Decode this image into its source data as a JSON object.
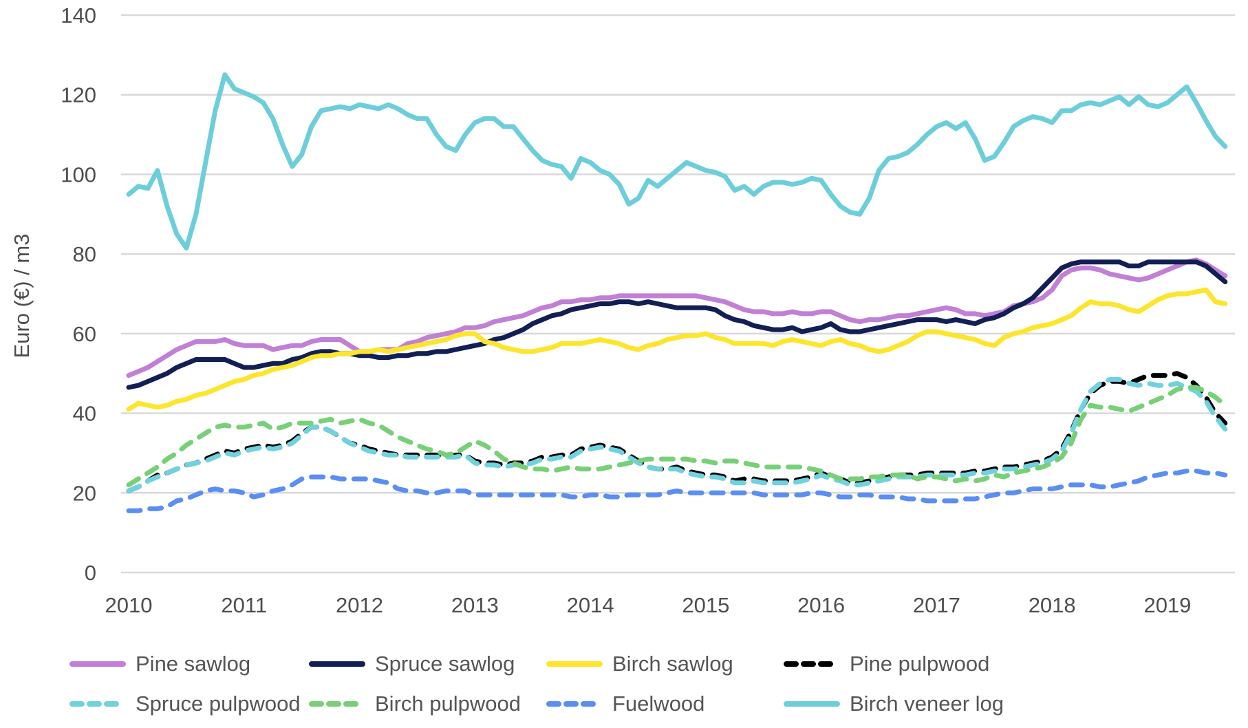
{
  "chart_data": {
    "type": "line",
    "title": "",
    "xlabel": "",
    "ylabel": "Euro (€) / m3",
    "ylim": [
      0,
      140
    ],
    "yticks": [
      0,
      20,
      40,
      60,
      80,
      100,
      120,
      140
    ],
    "x_tick_labels": [
      "2010",
      "2011",
      "2012",
      "2013",
      "2014",
      "2015",
      "2016",
      "2017",
      "2018",
      "2019"
    ],
    "x_resolution": "monthly",
    "points_per_series": 115,
    "grid": true,
    "legend_position": "bottom",
    "gridline_color": "#d9d9d9",
    "text_color": "#4d4d4d",
    "series": [
      {
        "name": "Pine sawlog",
        "color": "#c17fd6",
        "dashed": false,
        "legend_row": 0,
        "legend_col": 0,
        "values": [
          49.5,
          50.5,
          51.5,
          53,
          54.5,
          56,
          57,
          58,
          58,
          58,
          58.5,
          57.5,
          57,
          57,
          57,
          56,
          56.5,
          57,
          57,
          58,
          58.5,
          58.5,
          58.5,
          57,
          55.5,
          55.5,
          56,
          56,
          56,
          57.5,
          58,
          59,
          59.5,
          60,
          60.5,
          61.5,
          61.5,
          62,
          63,
          63.5,
          64,
          64.5,
          65.5,
          66.5,
          67,
          68,
          68,
          68.5,
          68.5,
          69,
          69,
          69.5,
          69.5,
          69.5,
          69.5,
          69.5,
          69.5,
          69.5,
          69.5,
          69.5,
          69,
          68.5,
          68,
          67,
          66,
          65.5,
          65.5,
          65,
          65,
          65.5,
          65,
          65,
          65.5,
          65.5,
          64.5,
          63.5,
          63,
          63.5,
          63.5,
          64,
          64.5,
          64.5,
          65,
          65.5,
          66,
          66.5,
          66,
          65,
          65,
          64.5,
          65,
          65.5,
          67,
          67.5,
          68,
          69,
          71,
          74.5,
          76,
          76.5,
          76.5,
          76,
          75,
          74.5,
          74,
          73.5,
          74,
          75,
          76,
          77,
          78,
          78.5,
          77.5,
          76,
          74.5
        ]
      },
      {
        "name": "Spruce sawlog",
        "color": "#121f55",
        "dashed": false,
        "legend_row": 0,
        "legend_col": 1,
        "values": [
          46.5,
          47,
          48,
          49,
          50,
          51.5,
          52.5,
          53.5,
          53.5,
          53.5,
          53.5,
          52.5,
          51.5,
          51.5,
          52,
          52.5,
          52.5,
          53.5,
          54,
          55,
          55.5,
          55.5,
          55,
          55,
          54.5,
          54.5,
          54,
          54,
          54.5,
          54.5,
          55,
          55,
          55.5,
          55.5,
          56,
          56.5,
          57,
          57.5,
          58.5,
          59,
          60,
          61,
          62.5,
          63.5,
          64.5,
          65,
          66,
          66.5,
          67,
          67.5,
          67.5,
          68,
          68,
          67.5,
          68,
          67.5,
          67,
          66.5,
          66.5,
          66.5,
          66.5,
          66,
          64.5,
          63.5,
          63,
          62,
          61.5,
          61,
          61,
          61.5,
          60.5,
          61,
          61.5,
          62.5,
          61,
          60.5,
          60.5,
          61,
          61.5,
          62,
          62.5,
          63,
          63.5,
          63.5,
          63.5,
          63,
          63.5,
          63,
          62.5,
          63.5,
          64,
          65,
          66.5,
          67.5,
          69,
          71.5,
          74,
          76.5,
          77.5,
          78,
          78,
          78,
          78,
          78,
          77,
          77,
          78,
          78,
          78,
          78,
          78,
          78,
          77,
          75,
          73
        ]
      },
      {
        "name": "Birch sawlog",
        "color": "#fde52d",
        "dashed": false,
        "legend_row": 0,
        "legend_col": 2,
        "values": [
          41,
          42.5,
          42,
          41.5,
          42,
          43,
          43.5,
          44.5,
          45,
          46,
          47,
          48,
          48.5,
          49.5,
          50,
          51,
          51.5,
          52,
          53,
          54,
          54.5,
          54.5,
          55,
          55,
          55.5,
          55.5,
          56,
          55.5,
          56,
          56.5,
          57,
          57.5,
          58,
          58.5,
          59.5,
          60,
          60,
          58,
          57.5,
          56.5,
          56,
          55.5,
          55.5,
          56,
          56.5,
          57.5,
          57.5,
          57.5,
          58,
          58.5,
          58,
          57.5,
          56.5,
          56,
          57,
          57.5,
          58.5,
          59,
          59.5,
          59.5,
          60,
          59,
          58.5,
          57.5,
          57.5,
          57.5,
          57.5,
          57,
          58,
          58.5,
          58,
          57.5,
          57,
          58,
          58.5,
          57.5,
          57,
          56,
          55.5,
          56,
          57,
          58,
          59.5,
          60.5,
          60.5,
          60,
          59.5,
          59,
          58.5,
          57.5,
          57,
          59,
          60,
          60.5,
          61.5,
          62,
          62.5,
          63.5,
          64.5,
          66.5,
          68,
          67.5,
          67.5,
          67,
          66,
          65.5,
          67,
          68.5,
          69.5,
          70,
          70,
          70.5,
          71,
          68,
          67.5
        ]
      },
      {
        "name": "Pine pulpwood",
        "color": "#000000",
        "dashed": true,
        "legend_row": 0,
        "legend_col": 3,
        "values": [
          20.5,
          21.5,
          23,
          24.5,
          25,
          26,
          27,
          27.5,
          28.5,
          29.5,
          30.5,
          30,
          31,
          31.5,
          32,
          31.5,
          32,
          33,
          35,
          36.5,
          36.5,
          35.5,
          34,
          32.5,
          32,
          31,
          30.5,
          30,
          29.5,
          29.5,
          29.5,
          29.5,
          29.5,
          29,
          29.5,
          29.5,
          28,
          27.5,
          27.5,
          27,
          27.5,
          27.5,
          28,
          29,
          29,
          29.5,
          29.5,
          31,
          31.5,
          32,
          31.5,
          31,
          29.5,
          28,
          26.5,
          26,
          26,
          26.5,
          25.5,
          25,
          24.5,
          24.5,
          24,
          23,
          23.5,
          23.5,
          23,
          23,
          23,
          23,
          23.5,
          24,
          25,
          24,
          23.5,
          22.5,
          22.5,
          23,
          23.5,
          24,
          24.5,
          24.5,
          24.5,
          25,
          25,
          25,
          25,
          25,
          25.5,
          25.5,
          26,
          26.5,
          26.5,
          27,
          27.5,
          28,
          29,
          31,
          35.5,
          41,
          45,
          47,
          48,
          48,
          47.5,
          48.5,
          49.5,
          49.5,
          49.5,
          50,
          49,
          47,
          44,
          40,
          37.5
        ]
      },
      {
        "name": "Spruce pulpwood",
        "color": "#70d2de",
        "dashed": true,
        "legend_row": 1,
        "legend_col": 0,
        "values": [
          20.5,
          21.5,
          23,
          24,
          25,
          26,
          27,
          27.5,
          28,
          29,
          30,
          29.5,
          30.5,
          31,
          31.5,
          31,
          31.5,
          32.5,
          34.5,
          36.5,
          36.5,
          35.5,
          34,
          32.5,
          31.5,
          30.5,
          30,
          29.5,
          29.5,
          29,
          29,
          29,
          29,
          29,
          29,
          29.5,
          27.5,
          27,
          27,
          26.5,
          27,
          27,
          27.5,
          28.5,
          28.5,
          29,
          29,
          30.5,
          31,
          31.5,
          31,
          30.5,
          29,
          27.5,
          26.5,
          26,
          26,
          26,
          25,
          24.5,
          24,
          24,
          23.5,
          22.5,
          22.5,
          23,
          22.5,
          22.5,
          22.5,
          22.5,
          23,
          23.5,
          24.5,
          23.5,
          23,
          22,
          22,
          22.5,
          23,
          23.5,
          24,
          24,
          24,
          24.5,
          24.5,
          24.5,
          24.5,
          24.5,
          25,
          25,
          25.5,
          26,
          26,
          26.5,
          27,
          27.5,
          28.5,
          30.5,
          35,
          41,
          45.5,
          47.5,
          48.5,
          48.5,
          47.5,
          47,
          47.5,
          47,
          47,
          47.5,
          46.5,
          45.5,
          43,
          39,
          36
        ]
      },
      {
        "name": "Birch pulpwood",
        "color": "#77d077",
        "dashed": true,
        "legend_row": 1,
        "legend_col": 1,
        "values": [
          22,
          23.5,
          25,
          26.5,
          28.5,
          30,
          32,
          33.5,
          35,
          36.5,
          37,
          36.5,
          36.5,
          37,
          37.5,
          36,
          36.5,
          37.5,
          37.5,
          37.5,
          38,
          38.5,
          37.5,
          38,
          38.5,
          37.5,
          37,
          35.5,
          34,
          33,
          32,
          31,
          30.5,
          29.5,
          30,
          31.5,
          33,
          32,
          30.5,
          28.5,
          27.5,
          26.5,
          26,
          26,
          25.5,
          26,
          26.5,
          26,
          26,
          26,
          26.5,
          27,
          27.5,
          28,
          28.5,
          28.5,
          28.5,
          28.5,
          28.5,
          28,
          28,
          27.5,
          28,
          28,
          27.5,
          27,
          26.5,
          26.5,
          26.5,
          26.5,
          26.5,
          26,
          25.5,
          24.5,
          23.5,
          23.5,
          23.5,
          24,
          24,
          24.5,
          24.5,
          24.5,
          23.5,
          24,
          24,
          23.5,
          23,
          23.5,
          23,
          23.5,
          24.5,
          24,
          25,
          25.5,
          26,
          26.5,
          27.5,
          29,
          32.5,
          38.5,
          42,
          41.5,
          41.5,
          41,
          40.5,
          41.5,
          42.5,
          43.5,
          44.5,
          46,
          46.5,
          46.5,
          45.5,
          44,
          42
        ]
      },
      {
        "name": "Fuelwood",
        "color": "#5a8ef2",
        "dashed": true,
        "legend_row": 1,
        "legend_col": 2,
        "values": [
          15.5,
          15.5,
          16,
          16,
          16.5,
          18,
          18.5,
          19.5,
          20.5,
          21,
          20.5,
          20.5,
          20,
          19,
          19.5,
          20.5,
          21,
          22,
          23.5,
          24,
          24,
          24,
          23.5,
          23.5,
          23.5,
          23.5,
          23,
          22.5,
          21,
          20.5,
          20.5,
          20,
          20,
          20.5,
          20.5,
          20.5,
          19.5,
          19.5,
          19.5,
          19.5,
          19.5,
          19.5,
          19.5,
          19.5,
          19.5,
          19.5,
          19,
          19,
          19.5,
          19.5,
          19,
          19,
          19.5,
          19.5,
          19.5,
          19.5,
          20,
          20.5,
          20,
          20,
          20,
          20,
          20,
          20,
          20,
          20,
          19.5,
          19.5,
          19.5,
          19.5,
          19.5,
          20,
          20,
          19.5,
          19,
          19,
          19.5,
          19.5,
          19,
          19,
          19,
          18.5,
          18.5,
          18,
          18,
          18,
          18,
          18.5,
          18.5,
          19,
          19.5,
          20,
          20,
          20.5,
          21,
          21,
          21,
          21.5,
          22,
          22,
          22,
          21.5,
          21.5,
          22,
          22.5,
          23,
          24,
          24.5,
          25,
          25,
          25.5,
          25.5,
          25,
          25,
          24.5
        ]
      },
      {
        "name": "Birch veneer log",
        "color": "#6dcedb",
        "dashed": false,
        "legend_row": 1,
        "legend_col": 3,
        "values": [
          95,
          97,
          96.5,
          101,
          92,
          85,
          81.5,
          90,
          103,
          116,
          125,
          121.5,
          120.5,
          119.5,
          118,
          114,
          107.5,
          102,
          105,
          112,
          116,
          116.5,
          117,
          116.5,
          117.5,
          117,
          116.5,
          117.5,
          116.5,
          115,
          114,
          114,
          110,
          107,
          106,
          110,
          113,
          114,
          114,
          112,
          112,
          109,
          106,
          103.5,
          102.5,
          102,
          99,
          104,
          103,
          101,
          100,
          97.5,
          92.5,
          94,
          98.5,
          97,
          99,
          101,
          103,
          102,
          101,
          100.5,
          99.5,
          96,
          97,
          95,
          97,
          98,
          98,
          97.5,
          98,
          99,
          98.5,
          95,
          92,
          90.5,
          90,
          94,
          101,
          104,
          104.5,
          105.5,
          107.5,
          110,
          112,
          113,
          111.5,
          113,
          109,
          103.5,
          104.5,
          108,
          112,
          113.5,
          114.5,
          114,
          113,
          116,
          116,
          117.5,
          118,
          117.5,
          118.5,
          119.5,
          117.5,
          119.5,
          117.5,
          117,
          118,
          120,
          122,
          118,
          113.5,
          109.5,
          107
        ]
      }
    ]
  }
}
